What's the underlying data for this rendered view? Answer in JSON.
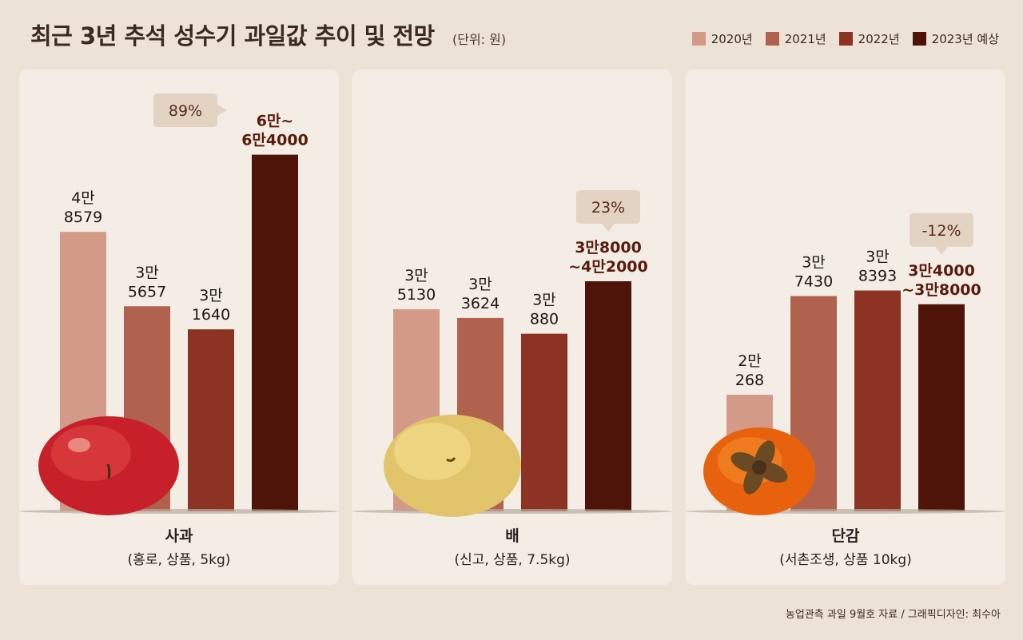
{
  "title": "최근 3년 추석 성수기 과일값 추이 및 전망",
  "unit": "(단위: 원)",
  "legend": [
    {
      "label": "2020년",
      "color": "#d39a88"
    },
    {
      "label": "2021년",
      "color": "#b0624f"
    },
    {
      "label": "2022년",
      "color": "#8c3324"
    },
    {
      "label": "2023년 예상",
      "color": "#4e140a"
    }
  ],
  "source": "농업관측 과일 9월호 자료 / 그래픽디자인: 최수아",
  "chart_data": [
    {
      "type": "bar",
      "name": "사과",
      "spec": "(홍로, 상품, 5kg)",
      "categories": [
        "2020년",
        "2021년",
        "2022년",
        "2023년 예상"
      ],
      "values": [
        48579,
        35657,
        31640,
        62000
      ],
      "value_labels": [
        [
          "4만",
          "8579"
        ],
        [
          "3만",
          "5657"
        ],
        [
          "3만",
          "1640"
        ],
        [
          "6만~",
          "6만4000"
        ]
      ],
      "change_label": "89%",
      "ylim": [
        0,
        65000
      ]
    },
    {
      "type": "bar",
      "name": "배",
      "spec": "(신고, 상품, 7.5kg)",
      "categories": [
        "2020년",
        "2021년",
        "2022년",
        "2023년 예상"
      ],
      "values": [
        35130,
        33624,
        30880,
        40000
      ],
      "value_labels": [
        [
          "3만",
          "5130"
        ],
        [
          "3만",
          "3624"
        ],
        [
          "3만",
          "880"
        ],
        [
          "3만8000",
          "~4만2000"
        ]
      ],
      "change_label": "23%",
      "ylim": [
        0,
        65000
      ]
    },
    {
      "type": "bar",
      "name": "단감",
      "spec": "(서촌조생, 상품 10kg)",
      "categories": [
        "2020년",
        "2021년",
        "2022년",
        "2023년 예상"
      ],
      "values": [
        20268,
        37430,
        38393,
        36000
      ],
      "value_labels": [
        [
          "2만",
          "268"
        ],
        [
          "3만",
          "7430"
        ],
        [
          "3만",
          "8393"
        ],
        [
          "3만4000",
          "~3만8000"
        ]
      ],
      "change_label": "-12%",
      "ylim": [
        0,
        65000
      ]
    }
  ]
}
